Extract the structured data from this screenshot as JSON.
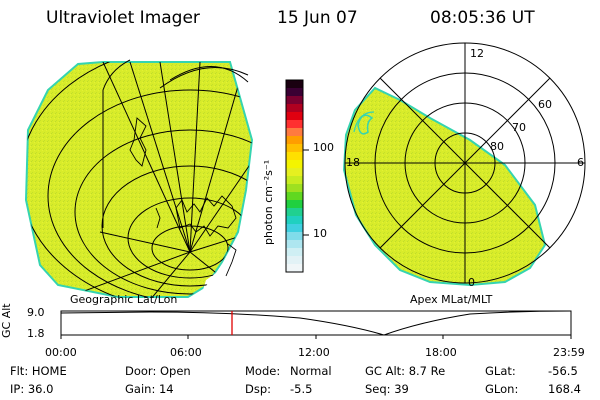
{
  "header": {
    "instrument": "Ultraviolet Imager",
    "date": "15 Jun 07",
    "time": "08:05:36 UT"
  },
  "colorbar": {
    "unit_label": "photon cm⁻²s⁻¹",
    "ticks": [
      "100",
      "10"
    ]
  },
  "left_panel": {
    "caption": "Geographic Lat/Lon"
  },
  "right_panel": {
    "caption": "Apex MLat/MLT",
    "lat_labels": [
      "60",
      "70",
      "80"
    ],
    "mlt_labels": [
      "12",
      "18",
      "6",
      "0"
    ]
  },
  "orbit_plot": {
    "axis_label": "GC Alt",
    "y_ticks": [
      "9.0",
      "1.8"
    ],
    "x_ticks": [
      "00:00",
      "06:00",
      "12:00",
      "18:00",
      "23:59"
    ],
    "current_time_marker_color": "#e00000"
  },
  "status": {
    "flt": "Flt: HOME",
    "ip": "IP: 36.0",
    "door": "Door: Open",
    "gain": "Gain: 14",
    "mode_label": "Mode:",
    "mode_value": "Normal",
    "dsp_label": "Dsp:",
    "dsp_value": "-5.5",
    "gc_alt": "GC Alt: 8.7 Re",
    "seq": "Seq: 39",
    "glat_label": "GLat:",
    "glat_value": "-56.5",
    "glon_label": "GLon:",
    "glon_value": "168.4"
  },
  "colors": {
    "emission_fill": "#d8ec2a",
    "emission_edge": "#35d4b0"
  }
}
